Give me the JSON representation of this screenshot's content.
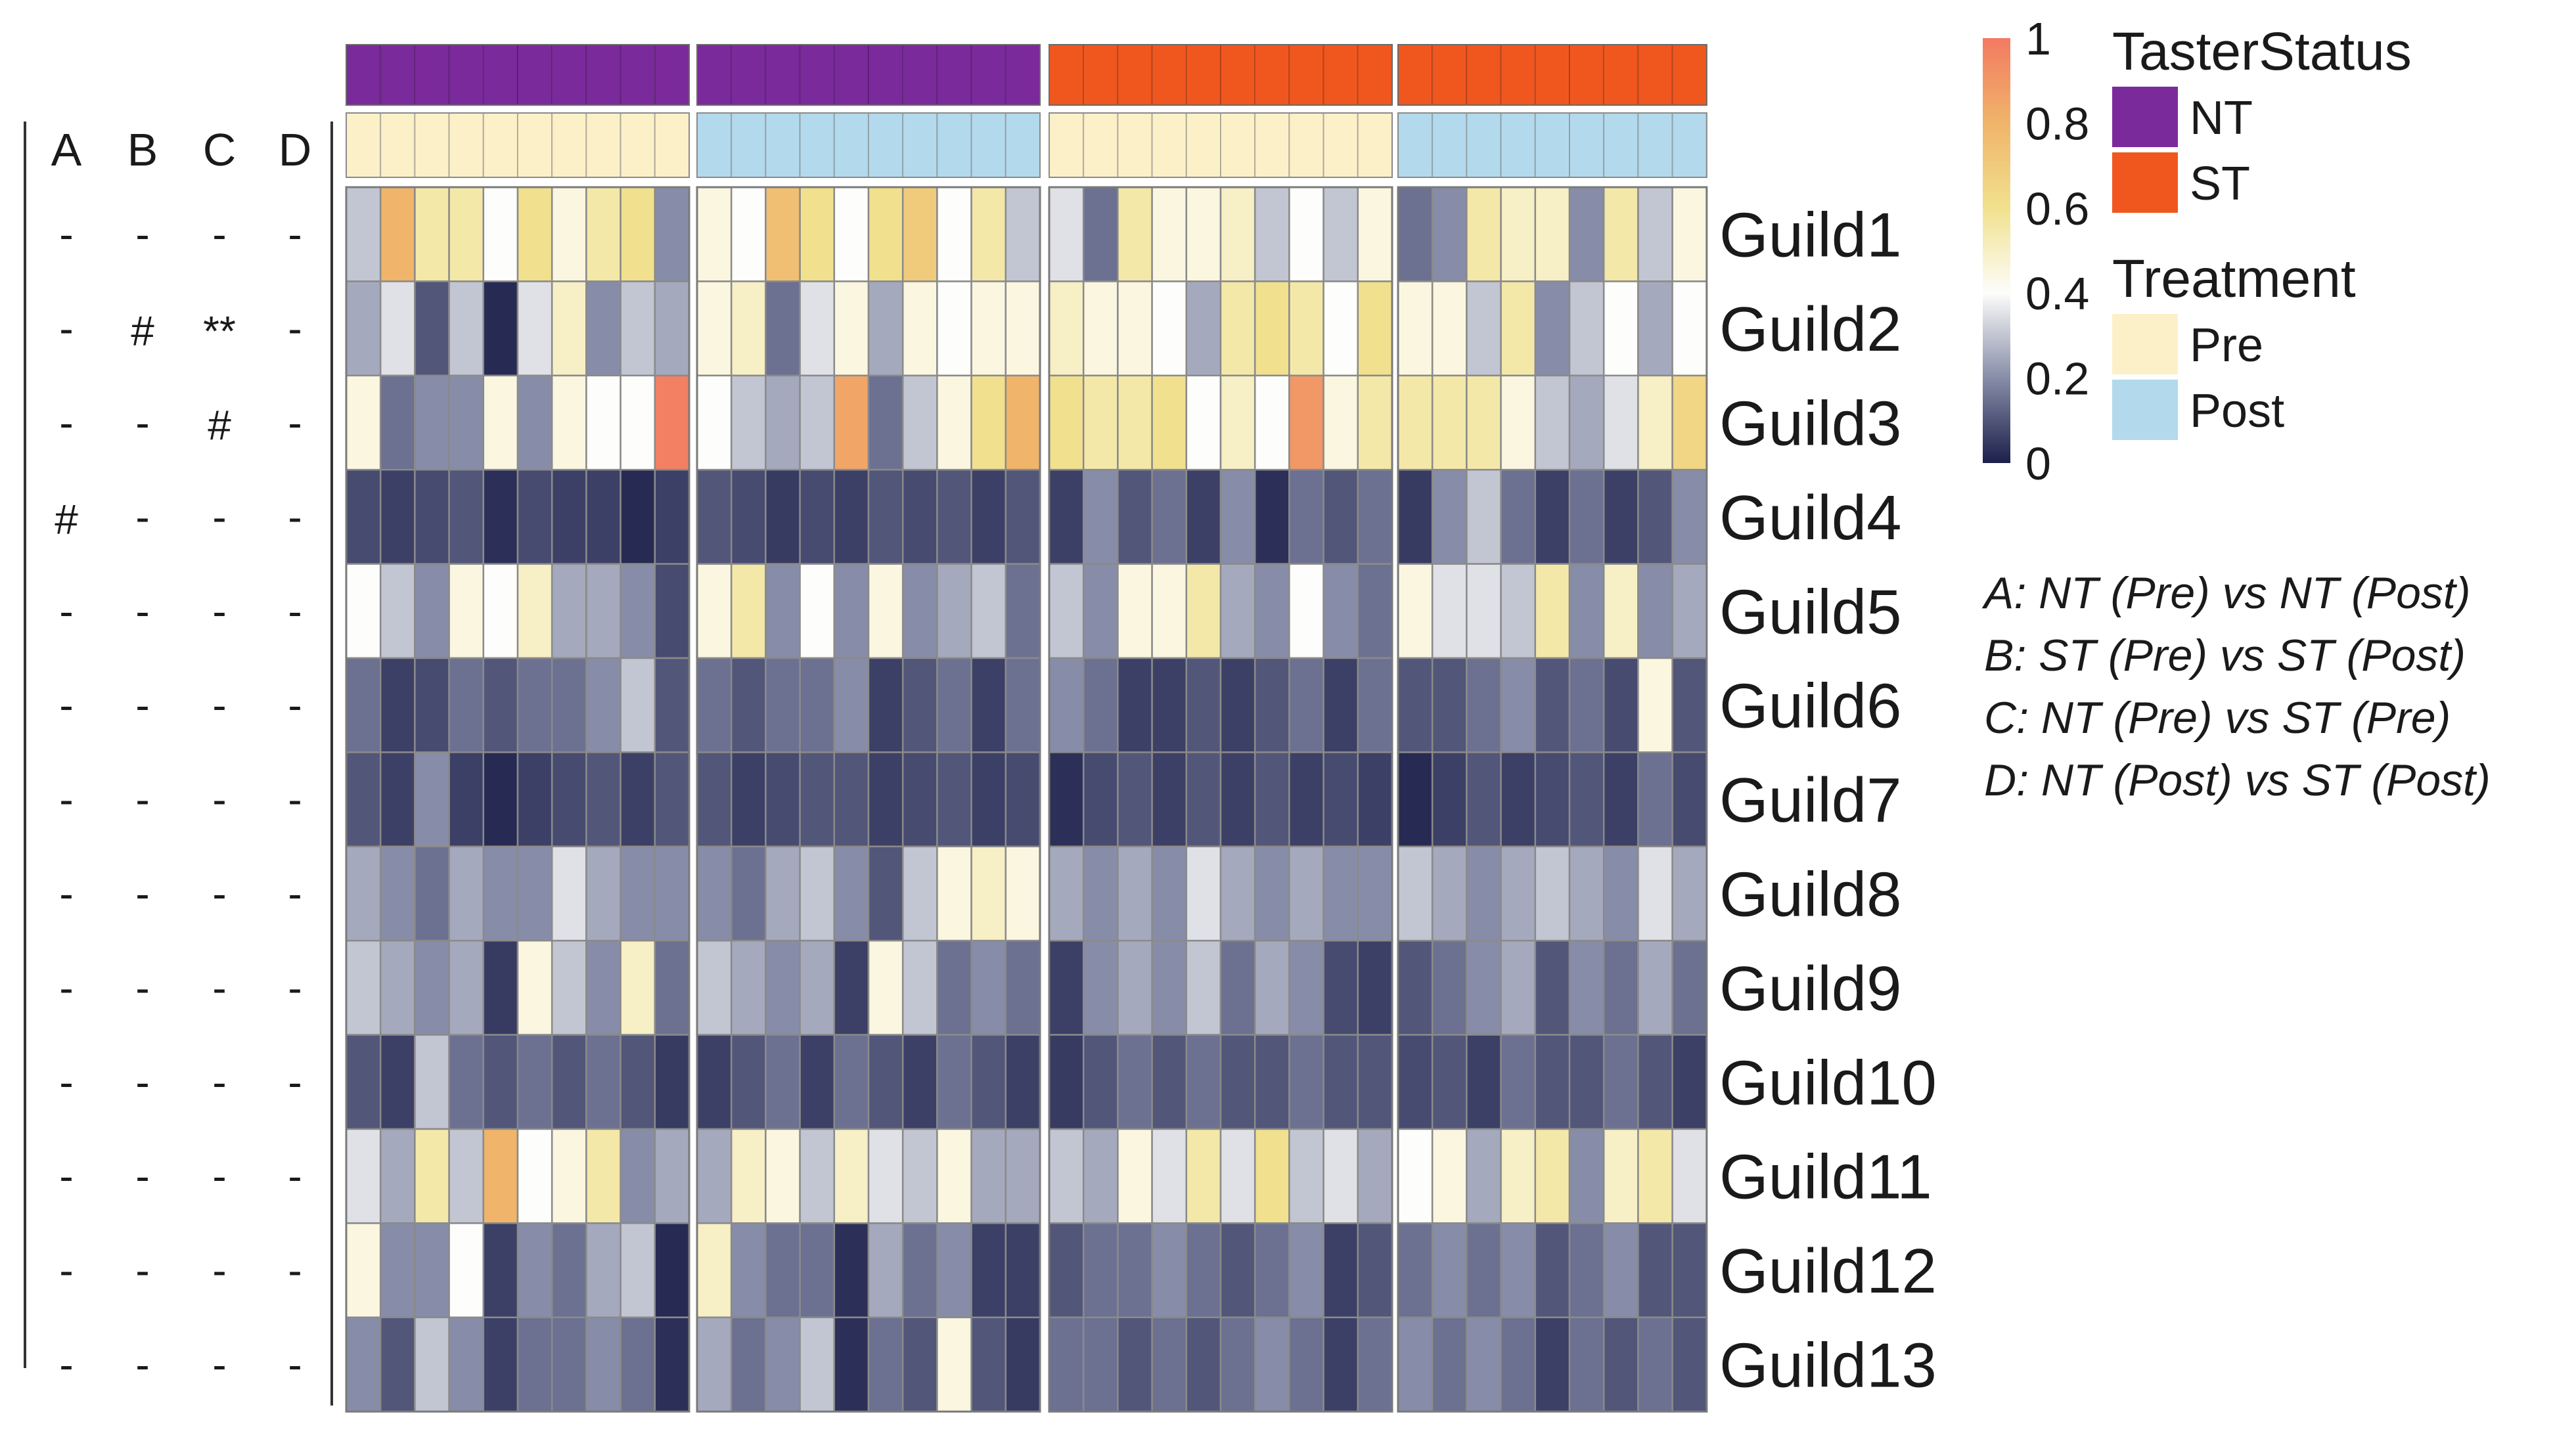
{
  "chart_data": {
    "type": "heatmap",
    "title": "",
    "rows": [
      "Guild1",
      "Guild2",
      "Guild3",
      "Guild4",
      "Guild5",
      "Guild6",
      "Guild7",
      "Guild8",
      "Guild9",
      "Guild10",
      "Guild11",
      "Guild12",
      "Guild13"
    ],
    "column_groups": [
      {
        "taster_status": "NT",
        "treatment": "Pre",
        "n": 10
      },
      {
        "taster_status": "NT",
        "treatment": "Post",
        "n": 10
      },
      {
        "taster_status": "ST",
        "treatment": "Pre",
        "n": 10
      },
      {
        "taster_status": "ST",
        "treatment": "Post",
        "n": 9
      }
    ],
    "values": [
      [
        0.3,
        0.8,
        0.55,
        0.55,
        0.4,
        0.6,
        0.45,
        0.55,
        0.6,
        0.2,
        0.45,
        0.4,
        0.75,
        0.6,
        0.4,
        0.6,
        0.7,
        0.4,
        0.55,
        0.3,
        0.35,
        0.15,
        0.55,
        0.45,
        0.45,
        0.5,
        0.3,
        0.4,
        0.3,
        0.45,
        0.15,
        0.2,
        0.55,
        0.5,
        0.5,
        0.2,
        0.55,
        0.3,
        0.45
      ],
      [
        0.25,
        0.35,
        0.1,
        0.3,
        0.02,
        0.35,
        0.5,
        0.2,
        0.3,
        0.25,
        0.45,
        0.5,
        0.15,
        0.35,
        0.45,
        0.25,
        0.45,
        0.4,
        0.45,
        0.45,
        0.5,
        0.45,
        0.45,
        0.4,
        0.25,
        0.55,
        0.6,
        0.55,
        0.4,
        0.6,
        0.45,
        0.45,
        0.3,
        0.55,
        0.2,
        0.3,
        0.4,
        0.25,
        0.4
      ],
      [
        0.45,
        0.15,
        0.2,
        0.2,
        0.45,
        0.2,
        0.45,
        0.4,
        0.4,
        0.98,
        0.4,
        0.3,
        0.25,
        0.3,
        0.85,
        0.15,
        0.3,
        0.45,
        0.6,
        0.8,
        0.6,
        0.55,
        0.55,
        0.6,
        0.4,
        0.5,
        0.4,
        0.9,
        0.45,
        0.55,
        0.55,
        0.55,
        0.55,
        0.45,
        0.3,
        0.25,
        0.35,
        0.5,
        0.65
      ],
      [
        0.08,
        0.06,
        0.08,
        0.1,
        0.03,
        0.08,
        0.06,
        0.06,
        0.02,
        0.06,
        0.1,
        0.08,
        0.05,
        0.08,
        0.06,
        0.1,
        0.08,
        0.1,
        0.06,
        0.1,
        0.06,
        0.2,
        0.1,
        0.15,
        0.06,
        0.2,
        0.03,
        0.15,
        0.1,
        0.15,
        0.05,
        0.2,
        0.3,
        0.15,
        0.06,
        0.15,
        0.06,
        0.1,
        0.2
      ],
      [
        0.4,
        0.3,
        0.2,
        0.45,
        0.4,
        0.5,
        0.25,
        0.25,
        0.2,
        0.08,
        0.45,
        0.55,
        0.2,
        0.4,
        0.2,
        0.45,
        0.2,
        0.25,
        0.3,
        0.15,
        0.3,
        0.2,
        0.45,
        0.45,
        0.55,
        0.25,
        0.2,
        0.4,
        0.2,
        0.15,
        0.45,
        0.35,
        0.35,
        0.3,
        0.55,
        0.2,
        0.5,
        0.2,
        0.25
      ],
      [
        0.15,
        0.06,
        0.08,
        0.15,
        0.1,
        0.15,
        0.15,
        0.2,
        0.3,
        0.1,
        0.15,
        0.1,
        0.15,
        0.15,
        0.2,
        0.06,
        0.1,
        0.15,
        0.06,
        0.15,
        0.2,
        0.15,
        0.06,
        0.06,
        0.1,
        0.06,
        0.1,
        0.15,
        0.06,
        0.15,
        0.1,
        0.1,
        0.15,
        0.2,
        0.1,
        0.15,
        0.08,
        0.45,
        0.1
      ],
      [
        0.1,
        0.06,
        0.2,
        0.06,
        0.02,
        0.06,
        0.08,
        0.1,
        0.06,
        0.1,
        0.1,
        0.06,
        0.08,
        0.1,
        0.1,
        0.06,
        0.08,
        0.1,
        0.06,
        0.08,
        0.03,
        0.08,
        0.1,
        0.06,
        0.1,
        0.06,
        0.1,
        0.06,
        0.08,
        0.06,
        0.02,
        0.06,
        0.1,
        0.06,
        0.08,
        0.1,
        0.06,
        0.15,
        0.08
      ],
      [
        0.25,
        0.2,
        0.15,
        0.25,
        0.2,
        0.2,
        0.35,
        0.25,
        0.2,
        0.2,
        0.2,
        0.15,
        0.25,
        0.3,
        0.2,
        0.1,
        0.3,
        0.45,
        0.5,
        0.45,
        0.25,
        0.2,
        0.25,
        0.2,
        0.35,
        0.25,
        0.2,
        0.25,
        0.2,
        0.2,
        0.3,
        0.25,
        0.2,
        0.25,
        0.3,
        0.25,
        0.2,
        0.35,
        0.25
      ],
      [
        0.3,
        0.25,
        0.2,
        0.25,
        0.05,
        0.45,
        0.3,
        0.2,
        0.5,
        0.15,
        0.3,
        0.25,
        0.2,
        0.25,
        0.06,
        0.45,
        0.3,
        0.15,
        0.2,
        0.15,
        0.06,
        0.2,
        0.25,
        0.2,
        0.3,
        0.15,
        0.25,
        0.2,
        0.08,
        0.06,
        0.1,
        0.15,
        0.2,
        0.25,
        0.1,
        0.2,
        0.15,
        0.25,
        0.15
      ],
      [
        0.1,
        0.06,
        0.3,
        0.15,
        0.1,
        0.15,
        0.1,
        0.15,
        0.1,
        0.05,
        0.06,
        0.1,
        0.15,
        0.06,
        0.15,
        0.1,
        0.06,
        0.15,
        0.1,
        0.06,
        0.05,
        0.1,
        0.15,
        0.1,
        0.15,
        0.1,
        0.1,
        0.15,
        0.1,
        0.1,
        0.08,
        0.1,
        0.06,
        0.15,
        0.1,
        0.1,
        0.15,
        0.1,
        0.06
      ],
      [
        0.35,
        0.25,
        0.55,
        0.3,
        0.8,
        0.4,
        0.45,
        0.55,
        0.2,
        0.25,
        0.25,
        0.5,
        0.45,
        0.3,
        0.5,
        0.35,
        0.3,
        0.45,
        0.25,
        0.25,
        0.3,
        0.25,
        0.45,
        0.35,
        0.55,
        0.35,
        0.6,
        0.3,
        0.35,
        0.25,
        0.4,
        0.45,
        0.25,
        0.5,
        0.55,
        0.2,
        0.5,
        0.55,
        0.35
      ],
      [
        0.45,
        0.2,
        0.2,
        0.4,
        0.06,
        0.2,
        0.15,
        0.25,
        0.3,
        0.02,
        0.5,
        0.2,
        0.15,
        0.15,
        0.03,
        0.25,
        0.15,
        0.2,
        0.06,
        0.06,
        0.1,
        0.15,
        0.15,
        0.2,
        0.15,
        0.1,
        0.15,
        0.2,
        0.06,
        0.1,
        0.15,
        0.2,
        0.15,
        0.2,
        0.1,
        0.15,
        0.2,
        0.1,
        0.1
      ],
      [
        0.2,
        0.1,
        0.3,
        0.2,
        0.06,
        0.15,
        0.15,
        0.2,
        0.15,
        0.03,
        0.25,
        0.15,
        0.2,
        0.3,
        0.03,
        0.15,
        0.1,
        0.45,
        0.1,
        0.05,
        0.15,
        0.15,
        0.1,
        0.15,
        0.1,
        0.15,
        0.2,
        0.15,
        0.06,
        0.15,
        0.2,
        0.15,
        0.2,
        0.15,
        0.06,
        0.15,
        0.1,
        0.15,
        0.1
      ]
    ],
    "significance": {
      "columns": [
        "A",
        "B",
        "C",
        "D"
      ],
      "rows": [
        [
          "-",
          "-",
          "-",
          "-"
        ],
        [
          "-",
          "#",
          "**",
          "-"
        ],
        [
          "-",
          "-",
          "#",
          "-"
        ],
        [
          "#",
          "-",
          "-",
          "-"
        ],
        [
          "-",
          "-",
          "-",
          "-"
        ],
        [
          "-",
          "-",
          "-",
          "-"
        ],
        [
          "-",
          "-",
          "-",
          "-"
        ],
        [
          "-",
          "-",
          "-",
          "-"
        ],
        [
          "-",
          "-",
          "-",
          "-"
        ],
        [
          "-",
          "-",
          "-",
          "-"
        ],
        [
          "-",
          "-",
          "-",
          "-"
        ],
        [
          "-",
          "-",
          "-",
          "-"
        ],
        [
          "-",
          "-",
          "-",
          "-"
        ]
      ]
    },
    "colorbar": {
      "ticks": [
        "1",
        "0.8",
        "0.6",
        "0.4",
        "0.2",
        "0"
      ],
      "range": [
        0,
        1
      ],
      "stops": [
        {
          "v": 0.0,
          "color": "#1c1f4a"
        },
        {
          "v": 0.2,
          "color": "#878da8"
        },
        {
          "v": 0.4,
          "color": "#fdfdfb"
        },
        {
          "v": 0.6,
          "color": "#f1e18e"
        },
        {
          "v": 0.8,
          "color": "#f0b46a"
        },
        {
          "v": 1.0,
          "color": "#f37a62"
        }
      ]
    },
    "legend": {
      "taster_title": "TasterStatus",
      "taster_items": [
        {
          "label": "NT",
          "color": "#7b2a9c"
        },
        {
          "label": "ST",
          "color": "#f0571f"
        }
      ],
      "treatment_title": "Treatment",
      "treatment_items": [
        {
          "label": "Pre",
          "color": "#fcf0c8"
        },
        {
          "label": "Post",
          "color": "#b3d9ec"
        }
      ]
    },
    "comparisons": [
      "A: NT (Pre) vs NT (Post)",
      "B: ST (Pre) vs ST (Post)",
      "C: NT (Pre) vs ST (Pre)",
      "D: NT (Post) vs ST (Post)"
    ]
  }
}
